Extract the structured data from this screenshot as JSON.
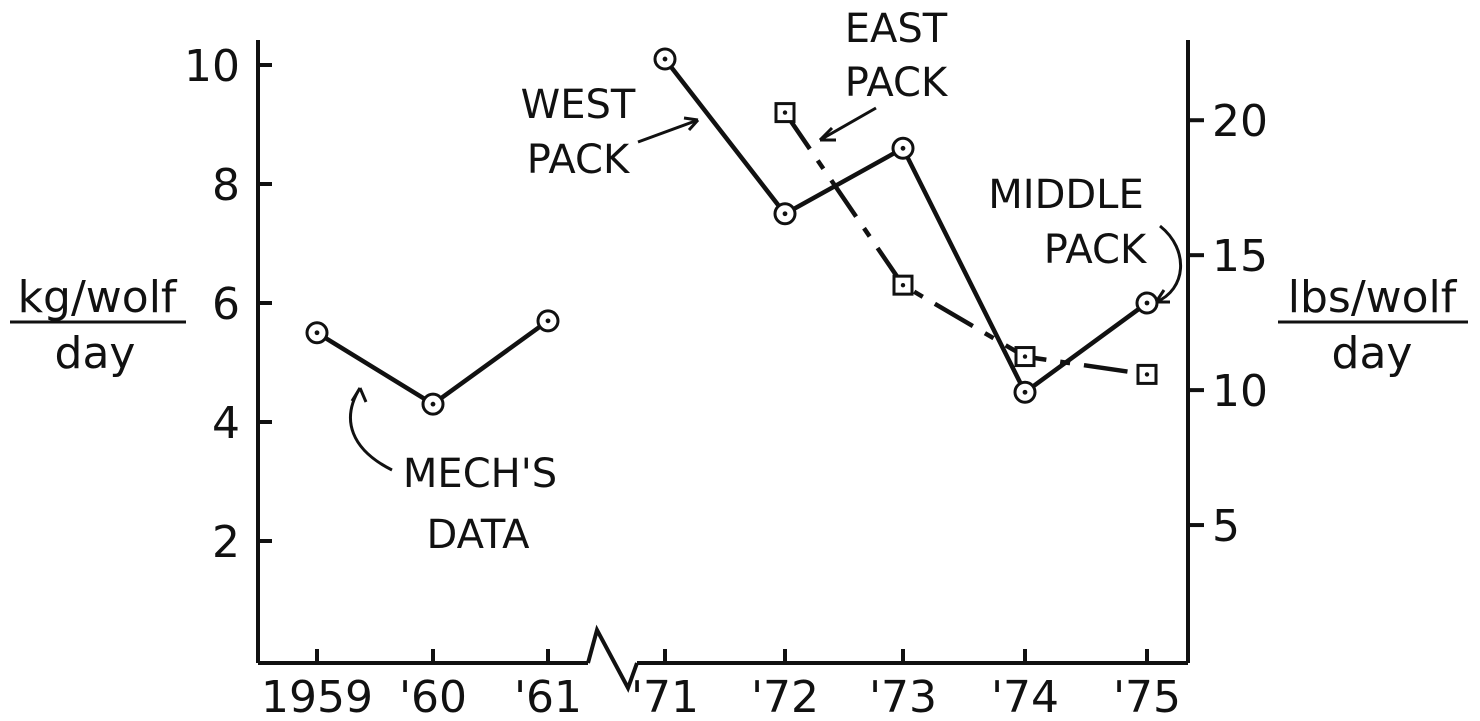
{
  "chart_data": {
    "type": "line",
    "x_categories": [
      "1959",
      "'60",
      "'61",
      "'71",
      "'72",
      "'73",
      "'74",
      "'75"
    ],
    "x_axis_break_between": [
      "'61",
      "'71"
    ],
    "y_left": {
      "label_top": "kg/wolf",
      "label_bottom": "day",
      "ticks": [
        2,
        4,
        6,
        8,
        10
      ],
      "range": [
        0,
        10.5
      ]
    },
    "y_right": {
      "label_top": "lbs/wolf",
      "label_bottom": "day",
      "ticks": [
        5,
        10,
        15,
        20
      ]
    },
    "series": [
      {
        "name": "MECH'S DATA",
        "marker": "circle",
        "line": "solid",
        "x": [
          "1959",
          "'60",
          "'61"
        ],
        "values": [
          5.5,
          4.3,
          5.7
        ]
      },
      {
        "name": "WEST PACK",
        "marker": "circle",
        "line": "solid",
        "x": [
          "'71",
          "'72",
          "'73",
          "'74",
          "'75"
        ],
        "values": [
          10.1,
          7.5,
          8.6,
          4.5,
          6.0
        ]
      },
      {
        "name": "EAST PACK",
        "marker": "square",
        "line": "dashed",
        "x": [
          "'72",
          "'73",
          "'74",
          "'75"
        ],
        "values": [
          9.2,
          6.3,
          5.1,
          4.8
        ]
      }
    ],
    "annotations": {
      "west_pack": [
        "WEST",
        "PACK"
      ],
      "east_pack": [
        "EAST",
        "PACK"
      ],
      "middle_pack": [
        "MIDDLE",
        "PACK"
      ],
      "mechs_data": [
        "MECH'S",
        "DATA"
      ]
    },
    "grid": false,
    "legend": "none"
  }
}
